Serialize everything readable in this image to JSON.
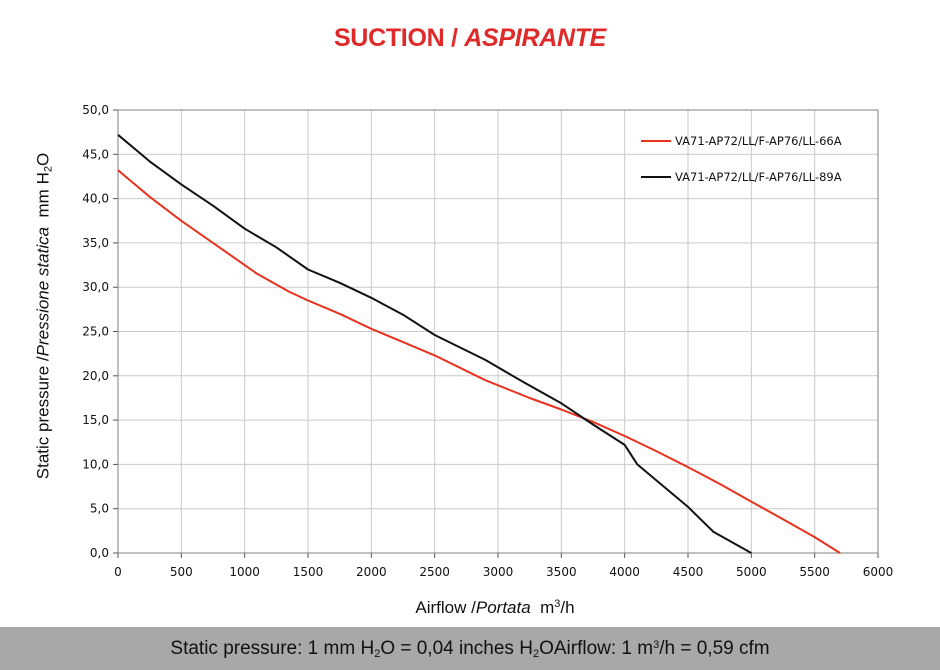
{
  "title": {
    "main": "SUCTION /",
    "italic": "ASPIRANTE"
  },
  "chart_data": {
    "type": "line",
    "title": "SUCTION / ASPIRANTE",
    "xlabel": "Airflow / Portata m³/h",
    "ylabel": "Static pressure / Pressione statica mm H₂O",
    "xlim": [
      0,
      6000
    ],
    "ylim": [
      0,
      50
    ],
    "xticks": [
      "0",
      "500",
      "1000",
      "1500",
      "2000",
      "2500",
      "3000",
      "3500",
      "4000",
      "4500",
      "5000",
      "5500",
      "6000"
    ],
    "yticks": [
      "0,0",
      "5,0",
      "10,0",
      "15,0",
      "20,0",
      "25,0",
      "30,0",
      "35,0",
      "40,0",
      "45,0",
      "50,0"
    ],
    "grid": true,
    "legend_position": "top-right",
    "series": [
      {
        "name": "VA71-AP72/LL/F-AP76/LL-66A",
        "color": "#e8321e",
        "points": [
          [
            0,
            43.2
          ],
          [
            250,
            40.2
          ],
          [
            500,
            37.5
          ],
          [
            750,
            35.0
          ],
          [
            1000,
            32.5
          ],
          [
            1100,
            31.5
          ],
          [
            1350,
            29.5
          ],
          [
            1500,
            28.5
          ],
          [
            1750,
            27.0
          ],
          [
            2000,
            25.3
          ],
          [
            2250,
            23.8
          ],
          [
            2500,
            22.3
          ],
          [
            2900,
            19.5
          ],
          [
            3250,
            17.5
          ],
          [
            3500,
            16.2
          ],
          [
            3750,
            14.8
          ],
          [
            4000,
            13.2
          ],
          [
            4250,
            11.5
          ],
          [
            4500,
            9.7
          ],
          [
            4750,
            7.8
          ],
          [
            5000,
            5.8
          ],
          [
            5250,
            3.8
          ],
          [
            5500,
            1.8
          ],
          [
            5700,
            0.0
          ]
        ]
      },
      {
        "name": "VA71-AP72/LL/F-AP76/LL-89A",
        "color": "#111111",
        "points": [
          [
            0,
            47.2
          ],
          [
            250,
            44.2
          ],
          [
            500,
            41.6
          ],
          [
            750,
            39.2
          ],
          [
            1000,
            36.6
          ],
          [
            1250,
            34.5
          ],
          [
            1500,
            32.0
          ],
          [
            1750,
            30.5
          ],
          [
            2000,
            28.8
          ],
          [
            2250,
            26.9
          ],
          [
            2500,
            24.6
          ],
          [
            2900,
            21.8
          ],
          [
            3200,
            19.3
          ],
          [
            3500,
            16.9
          ],
          [
            3750,
            14.5
          ],
          [
            4000,
            12.2
          ],
          [
            4100,
            10.0
          ],
          [
            4500,
            5.2
          ],
          [
            4700,
            2.4
          ],
          [
            5000,
            0.0
          ]
        ]
      }
    ]
  },
  "axes": {
    "ylabel_main": "Static pressure /",
    "ylabel_italic": "Pressione statica",
    "ylabel_unit": "mm H",
    "ylabel_sub": "2",
    "ylabel_unit_end": "O",
    "xlabel_main": "Airflow /",
    "xlabel_italic": "Portata",
    "xlabel_unit": "m",
    "xlabel_sup": "3",
    "xlabel_unit_end": "/h"
  },
  "footer": {
    "p1": "Static pressure: 1 mm H",
    "p1_sub": "2",
    "p2": "O = 0,04 inches H",
    "p2_sub": "2",
    "p3": "O",
    "p4": "Airflow: 1 m",
    "p4_sup": "3",
    "p5": "/h = 0,59 cfm"
  }
}
